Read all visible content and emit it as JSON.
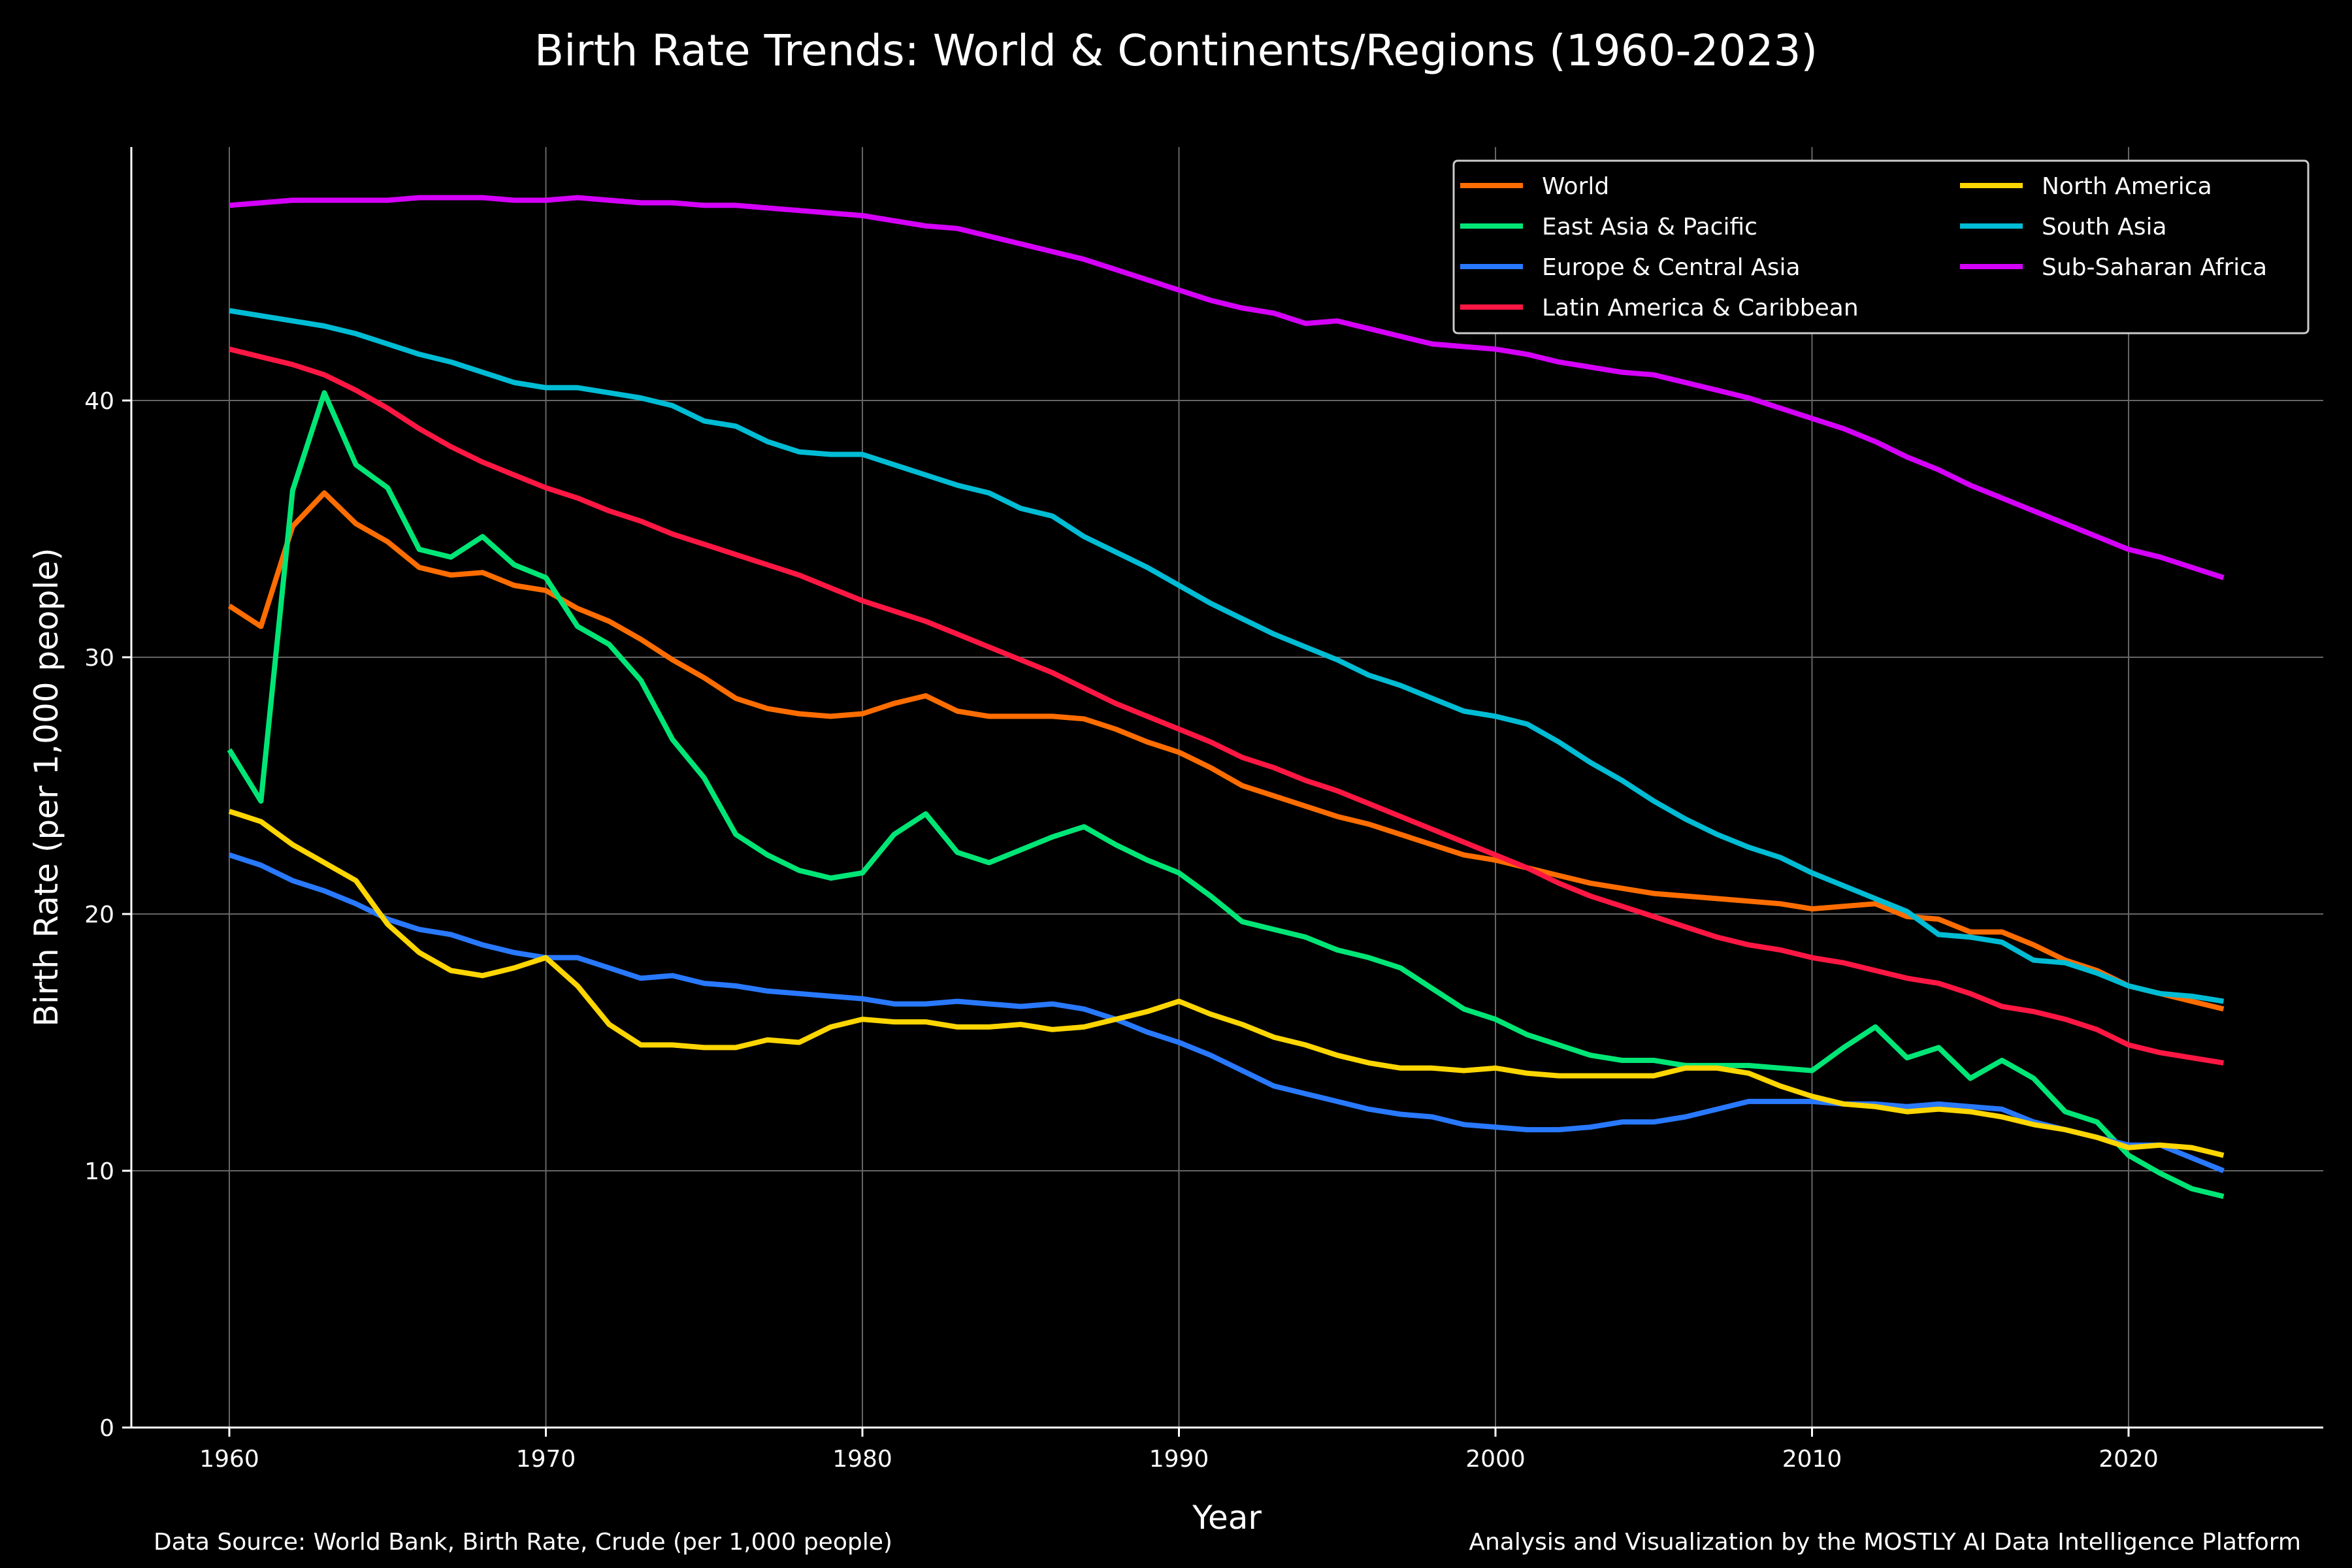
{
  "chart_data": {
    "type": "line",
    "title": "Birth Rate Trends: World & Continents/Regions (1960-2023)",
    "xlabel": "Year",
    "ylabel": "Birth Rate (per 1,000 people)",
    "xlim": [
      1957,
      2026
    ],
    "ylim": [
      0,
      50
    ],
    "xticks": [
      1960,
      1970,
      1980,
      1990,
      2000,
      2010,
      2020
    ],
    "yticks": [
      0,
      10,
      20,
      30,
      40
    ],
    "grid": true,
    "legend_position": "top-right",
    "x": [
      1960,
      1961,
      1962,
      1963,
      1964,
      1965,
      1966,
      1967,
      1968,
      1969,
      1970,
      1971,
      1972,
      1973,
      1974,
      1975,
      1976,
      1977,
      1978,
      1979,
      1980,
      1981,
      1982,
      1983,
      1984,
      1985,
      1986,
      1987,
      1988,
      1989,
      1990,
      1991,
      1992,
      1993,
      1994,
      1995,
      1996,
      1997,
      1998,
      1999,
      2000,
      2001,
      2002,
      2003,
      2004,
      2005,
      2006,
      2007,
      2008,
      2009,
      2010,
      2011,
      2012,
      2013,
      2014,
      2015,
      2016,
      2017,
      2018,
      2019,
      2020,
      2021,
      2022,
      2023
    ],
    "series": [
      {
        "name": "World",
        "color": "#FF6D00",
        "values": [
          32.0,
          31.2,
          35.1,
          36.4,
          35.2,
          34.5,
          33.5,
          33.2,
          33.3,
          32.8,
          32.6,
          31.9,
          31.4,
          30.7,
          29.9,
          29.2,
          28.4,
          28.0,
          27.8,
          27.7,
          27.8,
          28.2,
          28.5,
          27.9,
          27.7,
          27.7,
          27.7,
          27.6,
          27.2,
          26.7,
          26.3,
          25.7,
          25.0,
          24.6,
          24.2,
          23.8,
          23.5,
          23.1,
          22.7,
          22.3,
          22.1,
          21.8,
          21.5,
          21.2,
          21.0,
          20.8,
          20.7,
          20.6,
          20.5,
          20.4,
          20.2,
          20.3,
          20.4,
          19.9,
          19.8,
          19.3,
          19.3,
          18.8,
          18.2,
          17.8,
          17.2,
          16.9,
          16.6,
          16.3
        ]
      },
      {
        "name": "East Asia & Pacific",
        "color": "#00E676",
        "values": [
          26.4,
          24.4,
          36.5,
          40.3,
          37.5,
          36.6,
          34.2,
          33.9,
          34.7,
          33.6,
          33.1,
          31.2,
          30.5,
          29.1,
          26.8,
          25.3,
          23.1,
          22.3,
          21.7,
          21.4,
          21.6,
          23.1,
          23.9,
          22.4,
          22.0,
          22.5,
          23.0,
          23.4,
          22.7,
          22.1,
          21.6,
          20.7,
          19.7,
          19.4,
          19.1,
          18.6,
          18.3,
          17.9,
          17.1,
          16.3,
          15.9,
          15.3,
          14.9,
          14.5,
          14.3,
          14.3,
          14.1,
          14.1,
          14.1,
          14.0,
          13.9,
          14.8,
          15.6,
          14.4,
          14.8,
          13.6,
          14.3,
          13.6,
          12.3,
          11.9,
          10.6,
          9.9,
          9.3,
          9.0
        ]
      },
      {
        "name": "Europe & Central Asia",
        "color": "#2979FF",
        "values": [
          22.3,
          21.9,
          21.3,
          20.9,
          20.4,
          19.8,
          19.4,
          19.2,
          18.8,
          18.5,
          18.3,
          18.3,
          17.9,
          17.5,
          17.6,
          17.3,
          17.2,
          17.0,
          16.9,
          16.8,
          16.7,
          16.5,
          16.5,
          16.6,
          16.5,
          16.4,
          16.5,
          16.3,
          15.9,
          15.4,
          15.0,
          14.5,
          13.9,
          13.3,
          13.0,
          12.7,
          12.4,
          12.2,
          12.1,
          11.8,
          11.7,
          11.6,
          11.6,
          11.7,
          11.9,
          11.9,
          12.1,
          12.4,
          12.7,
          12.7,
          12.7,
          12.6,
          12.6,
          12.5,
          12.6,
          12.5,
          12.4,
          11.9,
          11.6,
          11.3,
          11.0,
          11.0,
          10.5,
          10.0
        ]
      },
      {
        "name": "Latin America & Caribbean",
        "color": "#FF1744",
        "values": [
          42.0,
          41.7,
          41.4,
          41.0,
          40.4,
          39.7,
          38.9,
          38.2,
          37.6,
          37.1,
          36.6,
          36.2,
          35.7,
          35.3,
          34.8,
          34.4,
          34.0,
          33.6,
          33.2,
          32.7,
          32.2,
          31.8,
          31.4,
          30.9,
          30.4,
          29.9,
          29.4,
          28.8,
          28.2,
          27.7,
          27.2,
          26.7,
          26.1,
          25.7,
          25.2,
          24.8,
          24.3,
          23.8,
          23.3,
          22.8,
          22.3,
          21.8,
          21.2,
          20.7,
          20.3,
          19.9,
          19.5,
          19.1,
          18.8,
          18.6,
          18.3,
          18.1,
          17.8,
          17.5,
          17.3,
          16.9,
          16.4,
          16.2,
          15.9,
          15.5,
          14.9,
          14.6,
          14.4,
          14.2
        ]
      },
      {
        "name": "North America",
        "color": "#FFD600",
        "values": [
          24.0,
          23.6,
          22.7,
          22.0,
          21.3,
          19.6,
          18.5,
          17.8,
          17.6,
          17.9,
          18.3,
          17.2,
          15.7,
          14.9,
          14.9,
          14.8,
          14.8,
          15.1,
          15.0,
          15.6,
          15.9,
          15.8,
          15.8,
          15.6,
          15.6,
          15.7,
          15.5,
          15.6,
          15.9,
          16.2,
          16.6,
          16.1,
          15.7,
          15.2,
          14.9,
          14.5,
          14.2,
          14.0,
          14.0,
          13.9,
          14.0,
          13.8,
          13.7,
          13.7,
          13.7,
          13.7,
          14.0,
          14.0,
          13.8,
          13.3,
          12.9,
          12.6,
          12.5,
          12.3,
          12.4,
          12.3,
          12.1,
          11.8,
          11.6,
          11.3,
          10.9,
          11.0,
          10.9,
          10.6
        ]
      },
      {
        "name": "South Asia",
        "color": "#00BCD4",
        "values": [
          43.5,
          43.3,
          43.1,
          42.9,
          42.6,
          42.2,
          41.8,
          41.5,
          41.1,
          40.7,
          40.5,
          40.5,
          40.3,
          40.1,
          39.8,
          39.2,
          39.0,
          38.4,
          38.0,
          37.9,
          37.9,
          37.5,
          37.1,
          36.7,
          36.4,
          35.8,
          35.5,
          34.7,
          34.1,
          33.5,
          32.8,
          32.1,
          31.5,
          30.9,
          30.4,
          29.9,
          29.3,
          28.9,
          28.4,
          27.9,
          27.7,
          27.4,
          26.7,
          25.9,
          25.2,
          24.4,
          23.7,
          23.1,
          22.6,
          22.2,
          21.6,
          21.1,
          20.6,
          20.1,
          19.2,
          19.1,
          18.9,
          18.2,
          18.1,
          17.7,
          17.2,
          16.9,
          16.8,
          16.6
        ]
      },
      {
        "name": "Sub-Saharan Africa",
        "color": "#D500F9",
        "values": [
          47.6,
          47.7,
          47.8,
          47.8,
          47.8,
          47.8,
          47.9,
          47.9,
          47.9,
          47.8,
          47.8,
          47.9,
          47.8,
          47.7,
          47.7,
          47.6,
          47.6,
          47.5,
          47.4,
          47.3,
          47.2,
          47.0,
          46.8,
          46.7,
          46.4,
          46.1,
          45.8,
          45.5,
          45.1,
          44.7,
          44.3,
          43.9,
          43.6,
          43.4,
          43.0,
          43.1,
          42.8,
          42.5,
          42.2,
          42.1,
          42.0,
          41.8,
          41.5,
          41.3,
          41.1,
          41.0,
          40.7,
          40.4,
          40.1,
          39.7,
          39.3,
          38.9,
          38.4,
          37.8,
          37.3,
          36.7,
          36.2,
          35.7,
          35.2,
          34.7,
          34.2,
          33.9,
          33.5,
          33.1
        ]
      }
    ],
    "footer_left": "Data Source: World Bank, Birth Rate, Crude (per 1,000 people)",
    "footer_right": "Analysis and Visualization by the MOSTLY AI Data Intelligence Platform"
  }
}
